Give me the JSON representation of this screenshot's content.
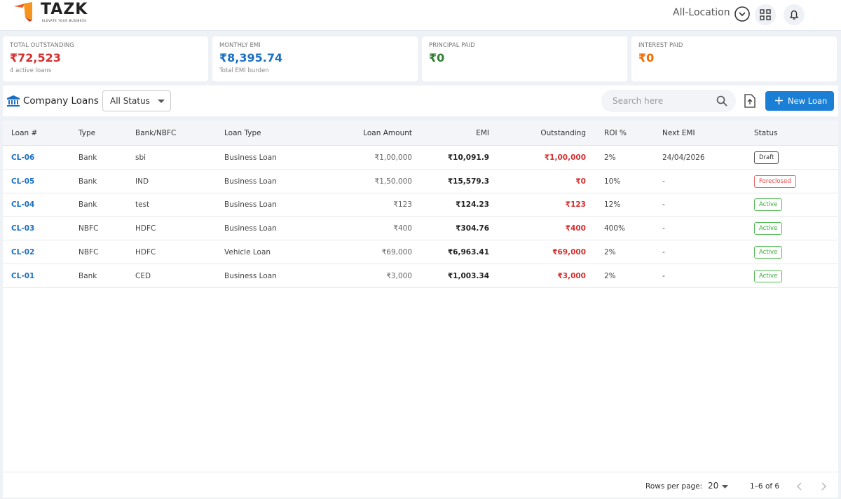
{
  "header": {
    "logo": "TAZK",
    "tagline": "ELEVATE YOUR BUSINESS",
    "location": "All-Location"
  },
  "stats": [
    {
      "label": "TOTAL OUTSTANDING",
      "value": "₹72,523",
      "note": "4 active loans"
    },
    {
      "label": "MONTHLY EMI",
      "value": "₹8,395.74",
      "note": "Total EMI burden"
    },
    {
      "label": "PRINCIPAL PAID",
      "value": "₹0"
    },
    {
      "label": "INTEREST PAID",
      "value": "₹0"
    }
  ],
  "toolbar": {
    "title": "Company Loans",
    "status_filter": "All Status",
    "search_placeholder": "Search here",
    "new_button": "New Loan"
  },
  "table": {
    "columns": [
      "Loan #",
      "Type",
      "Bank/NBFC",
      "Loan Type",
      "Loan Amount",
      "EMI",
      "Outstanding",
      "ROI %",
      "Next EMI",
      "Status"
    ],
    "rows": [
      [
        "CL-06",
        "Bank",
        "sbi",
        "Business Loan",
        "₹1,00,000",
        "₹10,091.9",
        "₹1,00,000",
        "2%",
        "24/04/2026",
        "Draft"
      ],
      [
        "CL-05",
        "Bank",
        "IND",
        "Business Loan",
        "₹1,50,000",
        "₹15,579.3",
        "₹0",
        "10%",
        "-",
        "Foreclosed"
      ],
      [
        "CL-04",
        "Bank",
        "test",
        "Business Loan",
        "₹123",
        "₹124.23",
        "₹123",
        "12%",
        "-",
        "Active"
      ],
      [
        "CL-03",
        "NBFC",
        "HDFC",
        "Business Loan",
        "₹400",
        "₹304.76",
        "₹400",
        "400%",
        "-",
        "Active"
      ],
      [
        "CL-02",
        "NBFC",
        "HDFC",
        "Vehicle Loan",
        "₹69,000",
        "₹6,963.41",
        "₹69,000",
        "2%",
        "-",
        "Active"
      ],
      [
        "CL-01",
        "Bank",
        "CED",
        "Business Loan",
        "₹3,000",
        "₹1,003.34",
        "₹3,000",
        "2%",
        "-",
        "Active"
      ]
    ]
  },
  "pagination": {
    "rows_per_page_label": "Rows per page:",
    "rows_per_page": 20,
    "range": "1–6 of 6"
  }
}
